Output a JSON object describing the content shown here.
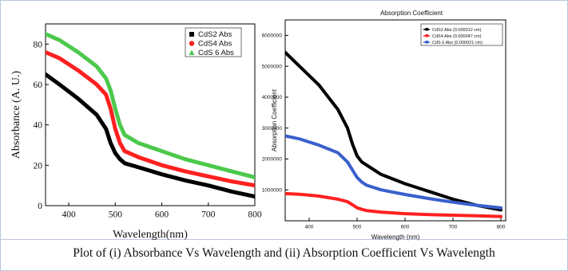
{
  "caption": "Plot of (i) Absorbance Vs Wavelength and (ii) Absorption Coefficient Vs Wavelength",
  "chart_data": [
    {
      "type": "line",
      "title": "",
      "xlabel": "Wavelength(nm)",
      "ylabel": "Absorbance (A. U.)",
      "xlim": [
        350,
        800
      ],
      "ylim": [
        0,
        90
      ],
      "xticks": [
        "400",
        "500",
        "600",
        "700",
        "800"
      ],
      "yticks": [
        "0",
        "20",
        "40",
        "60",
        "80"
      ],
      "legend_position": "top-right",
      "series": [
        {
          "name": "CdS2 Abs",
          "color": "#000000",
          "x": [
            350,
            380,
            420,
            460,
            480,
            490,
            500,
            510,
            520,
            550,
            600,
            650,
            700,
            750,
            800
          ],
          "y": [
            65,
            60,
            53,
            45,
            38,
            31,
            26,
            23,
            21,
            19,
            15.5,
            12.5,
            10,
            7,
            4.5
          ]
        },
        {
          "name": "CdS4 Abs",
          "color": "#ff2020",
          "x": [
            350,
            380,
            420,
            460,
            480,
            490,
            500,
            510,
            520,
            550,
            600,
            650,
            700,
            750,
            800
          ],
          "y": [
            76,
            73,
            67,
            60,
            55,
            48,
            38,
            31,
            27,
            24,
            20,
            17,
            14.5,
            12,
            10
          ]
        },
        {
          "name": "CdS 6 Abs",
          "color": "#4cc94c",
          "x": [
            350,
            380,
            420,
            460,
            480,
            490,
            500,
            510,
            520,
            550,
            600,
            650,
            700,
            750,
            800
          ],
          "y": [
            85,
            82,
            76,
            69,
            63,
            57,
            48,
            40,
            35,
            31,
            27,
            23,
            20,
            17,
            14
          ]
        }
      ]
    },
    {
      "type": "line",
      "title": "Absorption Coefficient",
      "xlabel": "Wavelength (nm)",
      "ylabel": "Absorption Coefficient",
      "xlim": [
        350,
        810
      ],
      "ylim": [
        0,
        6500000
      ],
      "xticks": [
        "400",
        "500",
        "600",
        "700",
        "800"
      ],
      "yticks": [
        "1000000",
        "2000000",
        "3000000",
        "4000000",
        "5000000",
        "6000000"
      ],
      "legend_position": "top-right",
      "series": [
        {
          "name": "CdS2 Abs (0.000012 cm)",
          "color": "#000000",
          "x": [
            350,
            380,
            420,
            460,
            480,
            490,
            500,
            510,
            520,
            550,
            600,
            650,
            700,
            750,
            800
          ],
          "y": [
            5450000,
            5000000,
            4400000,
            3600000,
            3000000,
            2500000,
            2100000,
            1900000,
            1800000,
            1500000,
            1200000,
            950000,
            700000,
            500000,
            350000
          ]
        },
        {
          "name": "CdS4 Abs (0.000047 cm)",
          "color": "#ff2020",
          "x": [
            350,
            380,
            420,
            460,
            480,
            490,
            500,
            510,
            520,
            550,
            600,
            650,
            700,
            750,
            800
          ],
          "y": [
            880000,
            860000,
            800000,
            700000,
            620000,
            520000,
            420000,
            370000,
            330000,
            280000,
            230000,
            200000,
            180000,
            160000,
            140000
          ]
        },
        {
          "name": "CdS 6 Abs (0.000021 cm)",
          "color": "#3a5fcd",
          "x": [
            350,
            380,
            420,
            460,
            480,
            490,
            500,
            510,
            520,
            550,
            600,
            650,
            700,
            750,
            800
          ],
          "y": [
            2750000,
            2650000,
            2450000,
            2200000,
            1900000,
            1650000,
            1400000,
            1250000,
            1150000,
            1000000,
            850000,
            720000,
            600000,
            500000,
            420000
          ]
        }
      ]
    }
  ]
}
